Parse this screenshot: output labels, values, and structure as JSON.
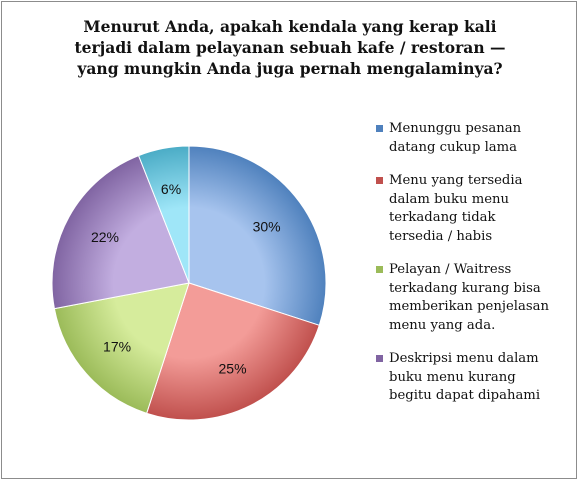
{
  "chart_data": {
    "type": "pie",
    "title_lines": [
      "Menurut Anda, apakah kendala yang kerap kali",
      "terjadi dalam pelayanan sebuah kafe / restoran —",
      "yang mungkin Anda juga pernah mengalaminya?"
    ],
    "slices": [
      {
        "label": "Menunggu pesanan\ndatang cukup lama",
        "value": 30,
        "value_label": "30%",
        "color": "#4f81bd",
        "light": "#a7c4ee"
      },
      {
        "label": "Menu yang tersedia\ndalam buku menu\nterkadang tidak\ntersedia / habis",
        "value": 25,
        "value_label": "25%",
        "color": "#c0504d",
        "light": "#f39c98"
      },
      {
        "label": "Pelayan / Waitress\nterkadang kurang bisa\nmemberikan penjelasan\nmenu yang ada.",
        "value": 17,
        "value_label": "17%",
        "color": "#9bbb59",
        "light": "#d6ec9c"
      },
      {
        "label": "Deskripsi menu dalam\nbuku menu kurang\nbegitu dapat dipahami",
        "value": 22,
        "value_label": "22%",
        "color": "#8064a2",
        "light": "#c2aee0"
      },
      {
        "label": "",
        "value": 6,
        "value_label": "6%",
        "color": "#4bacc6",
        "light": "#9fe6f8"
      }
    ],
    "legend_position": "right",
    "start_angle": "12 o'clock, clockwise"
  }
}
